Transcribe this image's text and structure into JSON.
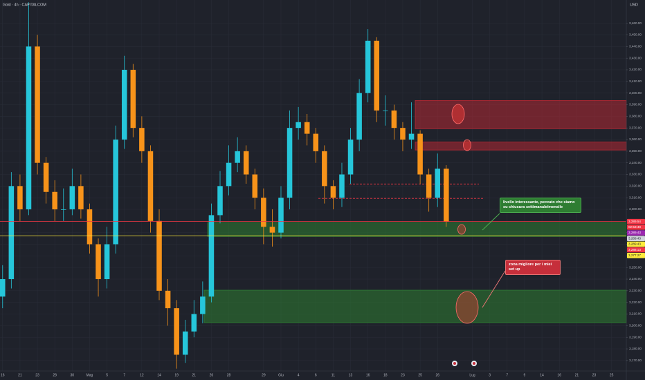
{
  "header": {
    "symbol": "Gold · 4h · CAPITALCOM",
    "currency": "USD"
  },
  "chart_data": {
    "type": "candlestick",
    "categories": [
      "16",
      null,
      "21",
      null,
      "23",
      null,
      "28",
      null,
      "30",
      null,
      "Mag",
      null,
      "5",
      null,
      "7",
      null,
      "12",
      null,
      "14",
      null,
      "19",
      null,
      "21",
      null,
      "26",
      null,
      "28",
      null,
      null,
      null,
      "29",
      null,
      "Giu",
      null,
      "4",
      null,
      "6",
      null,
      "11",
      null,
      "13",
      null,
      "16",
      null,
      "18",
      null,
      "23",
      null,
      "25",
      null,
      "26",
      null,
      null,
      null,
      "Lug",
      null,
      "3",
      null,
      "7",
      null,
      "9",
      null,
      "14",
      null,
      "16",
      null,
      "21",
      null,
      "23",
      null,
      "25",
      null
    ],
    "open": [
      3225,
      3240,
      3320,
      3300,
      3440,
      3340,
      3315,
      3300,
      3300,
      3320,
      3300,
      3270,
      3240,
      3270,
      3360,
      3420,
      3370,
      3350,
      3290,
      3230,
      3215,
      3175,
      3195,
      3210,
      3225,
      3295,
      3320,
      3340,
      3350,
      3330,
      3310,
      3285,
      3280,
      3310,
      3370,
      3375,
      3365,
      3350,
      3320,
      3310,
      3330,
      3360,
      3400,
      3445,
      3385,
      3385,
      3370,
      3360,
      3365,
      3330,
      3310,
      3335,
      null,
      null,
      null,
      null,
      null,
      null,
      null,
      null,
      null,
      null,
      null,
      null,
      null,
      null,
      null,
      null,
      null,
      null,
      null,
      null
    ],
    "high": [
      3252,
      3332,
      3330,
      3478,
      3450,
      3345,
      3325,
      3318,
      3335,
      3330,
      3305,
      3275,
      3285,
      3372,
      3432,
      3425,
      3380,
      3355,
      3300,
      3240,
      3222,
      3205,
      3222,
      3238,
      3305,
      3333,
      3355,
      3362,
      3355,
      3335,
      3318,
      3300,
      3320,
      3385,
      3388,
      3382,
      3370,
      3355,
      3325,
      3340,
      3370,
      3412,
      3455,
      3448,
      3398,
      3390,
      3375,
      3392,
      3368,
      3335,
      3348,
      3338,
      null,
      null,
      null,
      null,
      null,
      null,
      null,
      null,
      null,
      null,
      null,
      null,
      null,
      null,
      null,
      null,
      null,
      null,
      null,
      null
    ],
    "low": [
      3215,
      3232,
      3290,
      3295,
      3330,
      3305,
      3290,
      3290,
      3295,
      3292,
      3262,
      3225,
      3232,
      3262,
      3352,
      3362,
      3340,
      3280,
      3222,
      3200,
      3163,
      3168,
      3190,
      3202,
      3220,
      3288,
      3312,
      3332,
      3322,
      3300,
      3270,
      3268,
      3275,
      3300,
      3360,
      3355,
      3340,
      3305,
      3300,
      3302,
      3322,
      3350,
      3392,
      3375,
      3372,
      3360,
      3350,
      3352,
      3322,
      3298,
      3302,
      3285,
      null,
      null,
      null,
      null,
      null,
      null,
      null,
      null,
      null,
      null,
      null,
      null,
      null,
      null,
      null,
      null,
      null,
      null,
      null,
      null
    ],
    "close": [
      3240,
      3320,
      3300,
      3440,
      3340,
      3315,
      3300,
      3300,
      3320,
      3300,
      3270,
      3240,
      3270,
      3360,
      3420,
      3370,
      3350,
      3290,
      3230,
      3215,
      3175,
      3195,
      3210,
      3225,
      3295,
      3320,
      3340,
      3350,
      3330,
      3310,
      3285,
      3280,
      3310,
      3370,
      3375,
      3365,
      3350,
      3320,
      3310,
      3330,
      3360,
      3400,
      3445,
      3385,
      3385,
      3370,
      3360,
      3365,
      3330,
      3310,
      3335,
      3289.54,
      null,
      null,
      null,
      null,
      null,
      null,
      null,
      null,
      null,
      null,
      null,
      null,
      null,
      null,
      null,
      null,
      null,
      null,
      null,
      null
    ],
    "up_color": "#26c6da",
    "down_color": "#f7931a",
    "ylim": [
      3161,
      3480
    ],
    "yticks": [
      {
        "value": 3170,
        "label": "3,170.00"
      },
      {
        "value": 3180,
        "label": "3,180.00"
      },
      {
        "value": 3190,
        "label": "3,190.00"
      },
      {
        "value": 3200,
        "label": "3,200.00"
      },
      {
        "value": 3210,
        "label": "3,210.00"
      },
      {
        "value": 3220,
        "label": "3,220.00"
      },
      {
        "value": 3230,
        "label": "3,230.00"
      },
      {
        "value": 3240,
        "label": "3,240.00"
      },
      {
        "value": 3250,
        "label": "3,250.00"
      },
      {
        "value": 3260,
        "label": "3,260.00"
      },
      {
        "value": 3270,
        "label": "3,270.00"
      },
      {
        "value": 3280,
        "label": "3,280.00"
      },
      {
        "value": 3290,
        "label": "3,290.00"
      },
      {
        "value": 3300,
        "label": "3,300.00"
      },
      {
        "value": 3310,
        "label": "3,310.00"
      },
      {
        "value": 3320,
        "label": "3,320.00"
      },
      {
        "value": 3330,
        "label": "3,330.00"
      },
      {
        "value": 3340,
        "label": "3,340.00"
      },
      {
        "value": 3350,
        "label": "3,350.00"
      },
      {
        "value": 3360,
        "label": "3,360.00"
      },
      {
        "value": 3370,
        "label": "3,370.00"
      },
      {
        "value": 3380,
        "label": "3,380.00"
      },
      {
        "value": 3390,
        "label": "3,390.00"
      },
      {
        "value": 3400,
        "label": "3,400.00"
      },
      {
        "value": 3410,
        "label": "3,410.00"
      },
      {
        "value": 3420,
        "label": "3,420.00"
      },
      {
        "value": 3430,
        "label": "3,430.00"
      },
      {
        "value": 3440,
        "label": "3,440.00"
      },
      {
        "value": 3450,
        "label": "3,450.00"
      },
      {
        "value": 3460,
        "label": "3,460.00"
      }
    ],
    "grid": true,
    "zones": [
      {
        "range": [
          3369.3,
          3393.6
        ],
        "color": "#b22833"
      },
      {
        "range": [
          3351,
          3358
        ],
        "color": "#b22833"
      },
      {
        "range": [
          3276.7,
          3288.6
        ],
        "color": "#2e7d32"
      },
      {
        "range": [
          3202.6,
          3230.5
        ],
        "color": "#2e7d32"
      }
    ],
    "levels": [
      {
        "value": 3321.8,
        "color": "#f23645"
      },
      {
        "value": 3309.4,
        "color": "#f23645"
      }
    ],
    "price_lines": [
      {
        "value": 3289.54,
        "color": "#f23645"
      },
      {
        "value": 3277.27,
        "color": "#ffeb3b"
      }
    ],
    "price_tags": [
      {
        "label": "3,289.54",
        "color": "#f23645"
      },
      {
        "label": "02:53:48",
        "color": "#f23645"
      },
      {
        "label": "3,289.43",
        "color": "#9c27b0"
      },
      {
        "label": "3,289.43",
        "color": "#d1d4dc"
      },
      {
        "label": "3,289.43",
        "color": "#ffeb3b"
      },
      {
        "label": "3,288.13",
        "color": "#f23645"
      },
      {
        "label": "3,277.27",
        "color": "#ffeb3b"
      }
    ],
    "annotations": [
      "livello interessante, peccato che siamo su chiusura settimanale/mensile",
      "zona migliore per i miei set up"
    ]
  }
}
